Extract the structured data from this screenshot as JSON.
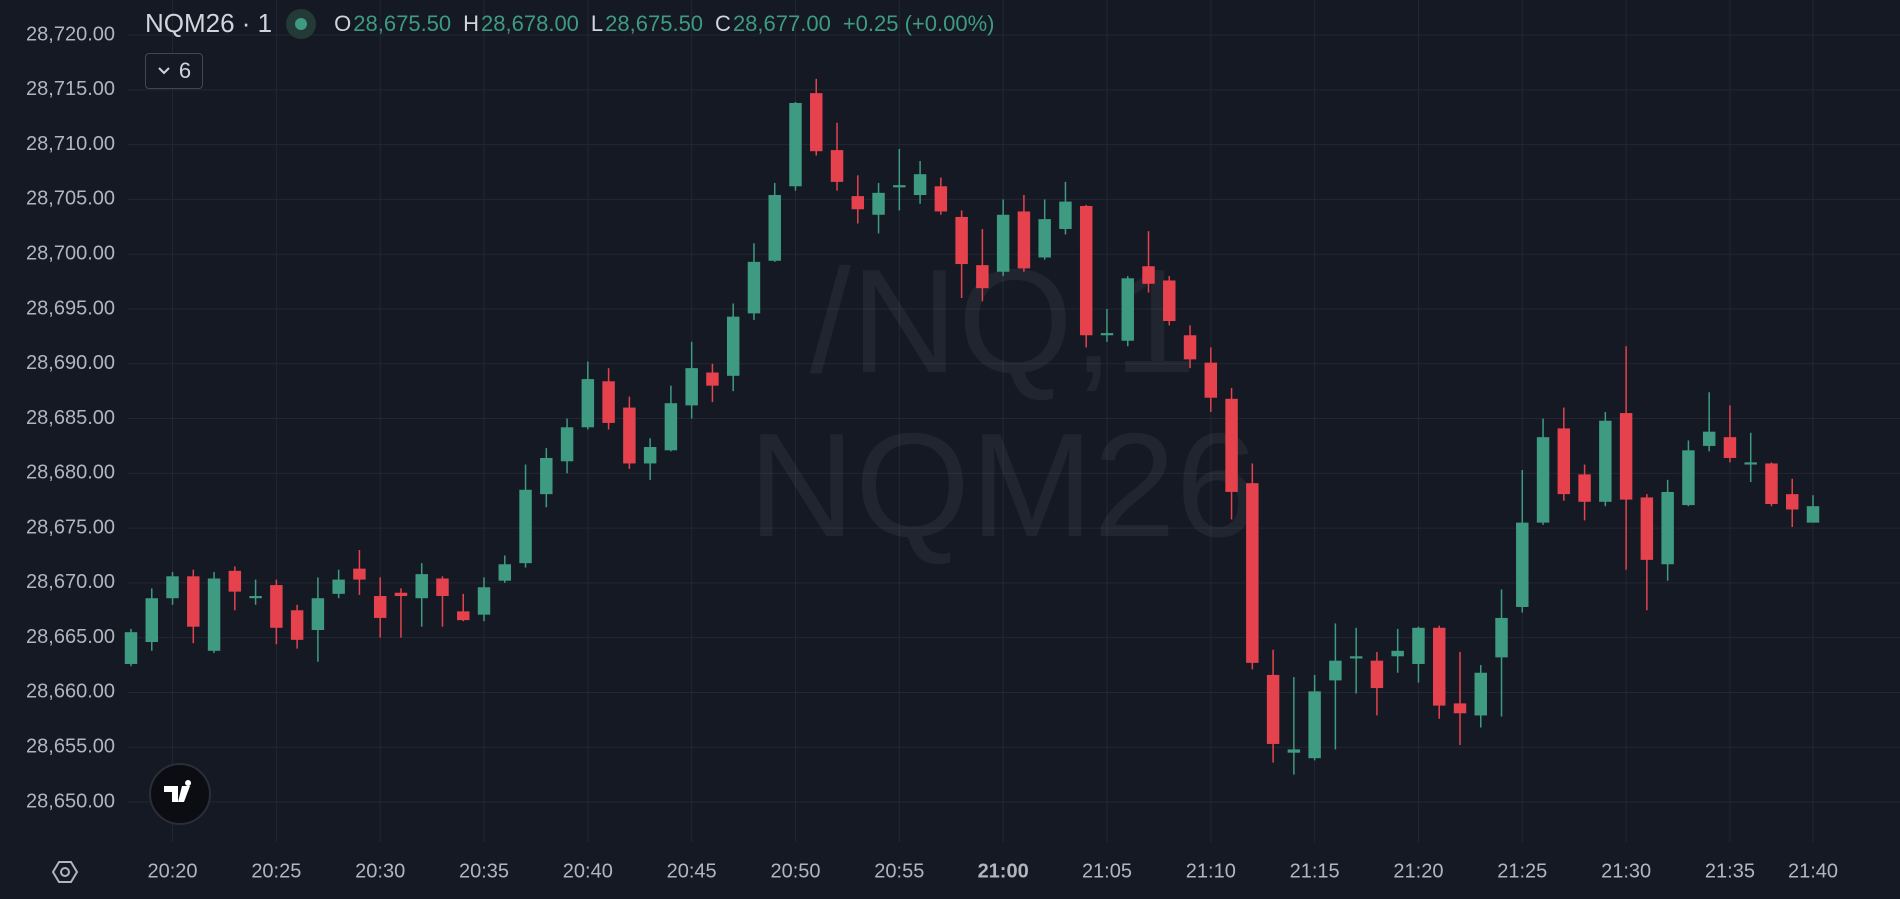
{
  "chart_data": {
    "type": "candlestick",
    "title": "NQM26 · 1",
    "ohlc_header": [
      {
        "label": "O",
        "value": "28,675.50"
      },
      {
        "label": "H",
        "value": "28,678.00"
      },
      {
        "label": "L",
        "value": "28,675.50"
      },
      {
        "label": "C",
        "value": "28,677.00"
      }
    ],
    "change": "+0.25 (+0.00%)",
    "indicator_count": "6",
    "watermark": [
      "/NQ,1",
      "NQM26"
    ],
    "up_color": "#3e9b81",
    "down_color": "#e5424d",
    "grid": true,
    "ylim": [
      28646.35,
      28723.2
    ],
    "yticks": [
      {
        "value": 28650,
        "label": "28,650.00"
      },
      {
        "value": 28655,
        "label": "28,655.00"
      },
      {
        "value": 28660,
        "label": "28,660.00"
      },
      {
        "value": 28665,
        "label": "28,665.00"
      },
      {
        "value": 28670,
        "label": "28,670.00"
      },
      {
        "value": 28675,
        "label": "28,675.00"
      },
      {
        "value": 28680,
        "label": "28,680.00"
      },
      {
        "value": 28685,
        "label": "28,685.00"
      },
      {
        "value": 28690,
        "label": "28,690.00"
      },
      {
        "value": 28695,
        "label": "28,695.00"
      },
      {
        "value": 28700,
        "label": "28,700.00"
      },
      {
        "value": 28705,
        "label": "28,705.00"
      },
      {
        "value": 28710,
        "label": "28,710.00"
      },
      {
        "value": 28715,
        "label": "28,715.00"
      },
      {
        "value": 28720,
        "label": "28,720.00"
      }
    ],
    "categories": [
      null,
      null,
      "20:20",
      null,
      null,
      null,
      null,
      "20:25",
      null,
      null,
      null,
      null,
      "20:30",
      null,
      null,
      null,
      null,
      "20:35",
      null,
      null,
      null,
      null,
      "20:40",
      null,
      null,
      null,
      null,
      "20:45",
      null,
      null,
      null,
      null,
      "20:50",
      null,
      null,
      null,
      null,
      "20:55",
      null,
      null,
      null,
      null,
      "21:00",
      null,
      null,
      null,
      null,
      "21:05",
      null,
      null,
      null,
      null,
      "21:10",
      null,
      null,
      null,
      null,
      "21:15",
      null,
      null,
      null,
      null,
      "21:20",
      null,
      null,
      null,
      null,
      "21:25",
      null,
      null,
      null,
      null,
      "21:30",
      null,
      null,
      null,
      null,
      "21:35",
      null,
      null,
      null,
      "21:40"
    ],
    "open": [
      28662.6,
      28664.6,
      28668.6,
      28670.6,
      28663.8,
      28671.1,
      28668.6,
      28669.8,
      28667.5,
      28665.7,
      28669,
      28671.3,
      28668.8,
      28669.1,
      28668.6,
      28670.4,
      28667.4,
      28667.1,
      28670.2,
      28671.8,
      28678.1,
      28681.1,
      28684.2,
      28688.4,
      28686,
      28680.9,
      28682.1,
      28686.2,
      28689.2,
      28688.9,
      28694.6,
      28699.4,
      28706.2,
      28714.7,
      28709.5,
      28705.3,
      28703.6,
      28706.1,
      28705.4,
      28706.2,
      28703.4,
      28699,
      28698.4,
      28703.9,
      28699.7,
      28702.3,
      28704.4,
      28692.6,
      28692.1,
      28698.9,
      28697.6,
      28692.6,
      28690.1,
      28686.8,
      28679.1,
      28661.6,
      28654.5,
      28654,
      28661.1,
      28663.1,
      28662.9,
      28663.3,
      28662.6,
      28665.9,
      28659,
      28657.9,
      28663.2,
      28667.8,
      28675.5,
      28684.1,
      28679.9,
      28677.4,
      28685.5,
      28677.8,
      28671.7,
      28677.1,
      28682.5,
      28683.3,
      28680.8,
      28680.9,
      28678.1,
      28675.5
    ],
    "high": [
      28665.8,
      28669.5,
      28671,
      28671.2,
      28671,
      28671.5,
      28670.3,
      28670.3,
      28668,
      28670.5,
      28671.2,
      28673,
      28670.5,
      28669.5,
      28671.8,
      28670.6,
      28669,
      28670.5,
      28672.5,
      28680.8,
      28682.3,
      28685,
      28690.2,
      28689.6,
      28687,
      28683.2,
      28688,
      28692,
      28690,
      28695.5,
      28701,
      28706.5,
      28713.9,
      28716,
      28712,
      28707.2,
      28706.5,
      28709.6,
      28708.5,
      28707,
      28704,
      28702.3,
      28705,
      28705.4,
      28705,
      28706.6,
      28704.5,
      28695,
      28698,
      28702.1,
      28698,
      28693.5,
      28691.5,
      28687.8,
      28680.9,
      28663.9,
      28661.4,
      28661.6,
      28666.3,
      28665.9,
      28663.7,
      28665.8,
      28666,
      28666.1,
      28663.7,
      28662.5,
      28669.4,
      28680.3,
      28685,
      28686,
      28680.8,
      28685.6,
      28691.6,
      28678.1,
      28679.4,
      28683,
      28687.4,
      28686.2,
      28683.7,
      28681,
      28679.5,
      28678
    ],
    "low": [
      28662.4,
      28663.8,
      28668,
      28664.5,
      28663.6,
      28667.5,
      28668,
      28664.4,
      28664,
      28662.8,
      28668.6,
      28668.9,
      28665,
      28665,
      28666,
      28666,
      28666.5,
      28666.5,
      28670,
      28671.4,
      28676.9,
      28680,
      28684,
      28684,
      28680.4,
      28679.4,
      28682,
      28685,
      28686.5,
      28687.5,
      28694,
      28699.3,
      28705.8,
      28709,
      28705.8,
      28702.8,
      28701.9,
      28704,
      28704.6,
      28703.6,
      28696,
      28695.7,
      28698,
      28698.4,
      28699.5,
      28701.8,
      28691.5,
      28692,
      28691.6,
      28696.5,
      28693.5,
      28689.6,
      28685.6,
      28675.8,
      28662.1,
      28653.6,
      28652.5,
      28653.8,
      28654.8,
      28659.9,
      28657.9,
      28661.8,
      28660.9,
      28657.6,
      28655.2,
      28656.8,
      28657.8,
      28667.3,
      28675.3,
      28677.5,
      28675.7,
      28677,
      28671.2,
      28667.5,
      28670.2,
      28677,
      28682,
      28681,
      28679.2,
      28677,
      28675.1,
      28675.5
    ],
    "close": [
      28665.5,
      28668.6,
      28670.6,
      28666,
      28670.4,
      28669.2,
      28668.8,
      28665.9,
      28664.8,
      28668.6,
      28670.3,
      28670.3,
      28666.8,
      28668.8,
      28670.8,
      28668.8,
      28666.6,
      28669.6,
      28671.7,
      28678.5,
      28681.4,
      28684.2,
      28688.6,
      28684.6,
      28680.9,
      28682.4,
      28686.4,
      28689.6,
      28688,
      28694.3,
      28699.3,
      28705.4,
      28713.8,
      28709.4,
      28706.6,
      28704.1,
      28705.6,
      28706.3,
      28707.3,
      28703.9,
      28699.1,
      28696.9,
      28703.6,
      28698.7,
      28703.2,
      28704.8,
      28692.6,
      28692.8,
      28697.8,
      28697.3,
      28693.9,
      28690.4,
      28686.9,
      28678.3,
      28662.7,
      28655.3,
      28654.8,
      28660.1,
      28662.9,
      28663.3,
      28660.4,
      28663.8,
      28665.9,
      28658.8,
      28658.1,
      28661.8,
      28666.8,
      28675.5,
      28683.3,
      28678.1,
      28677.4,
      28684.8,
      28677.6,
      28672.1,
      28678.3,
      28682.1,
      28683.8,
      28681.4,
      28681,
      28677.2,
      28676.7,
      28677
    ]
  }
}
